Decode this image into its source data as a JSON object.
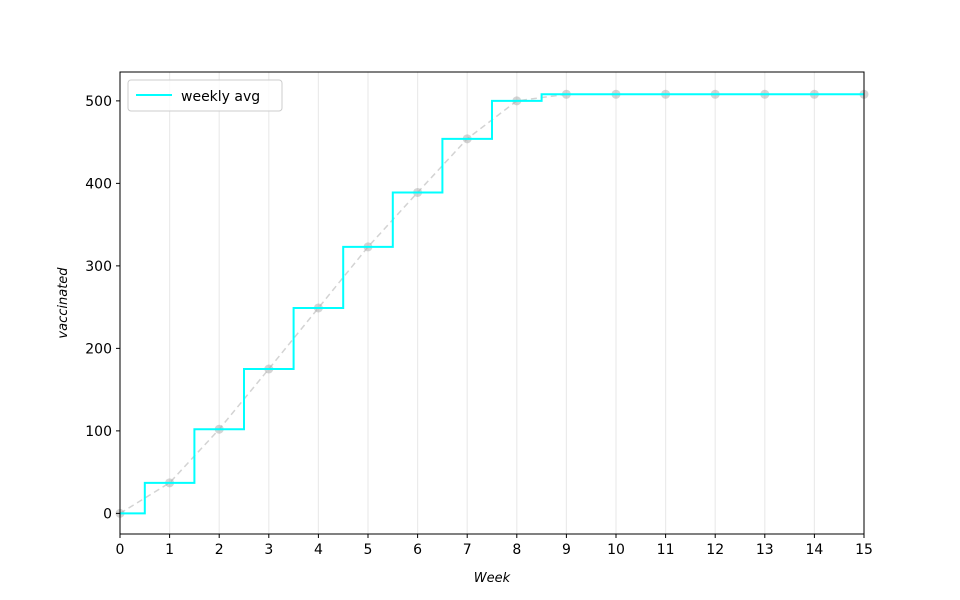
{
  "chart_data": {
    "type": "line",
    "xlabel": "Week",
    "ylabel": "vaccinated",
    "xlim": [
      0,
      15
    ],
    "ylim": [
      -25,
      535
    ],
    "xticks": [
      0,
      1,
      2,
      3,
      4,
      5,
      6,
      7,
      8,
      9,
      10,
      11,
      12,
      13,
      14,
      15
    ],
    "yticks": [
      0,
      100,
      200,
      300,
      400,
      500
    ],
    "grid": "vertical lines at each week, light gray",
    "legend_position": "top-left",
    "series": [
      {
        "name": "weekly avg",
        "style": "step-mid",
        "color": "#00ffff",
        "x": [
          0,
          1,
          2,
          3,
          4,
          5,
          6,
          7,
          8,
          9,
          10,
          11,
          12,
          13,
          14,
          15
        ],
        "y": [
          0,
          37,
          102,
          175,
          249,
          323,
          389,
          454,
          500,
          508,
          508,
          508,
          508,
          508,
          508,
          508
        ]
      },
      {
        "style": "dashed line with circle markers",
        "color": "#bbbbbb",
        "x": [
          0,
          1,
          2,
          3,
          4,
          5,
          6,
          7,
          8,
          9,
          10,
          11,
          12,
          13,
          14,
          15
        ],
        "y": [
          0,
          37,
          102,
          175,
          249,
          323,
          389,
          454,
          500,
          508,
          508,
          508,
          508,
          508,
          508,
          508
        ]
      }
    ]
  }
}
